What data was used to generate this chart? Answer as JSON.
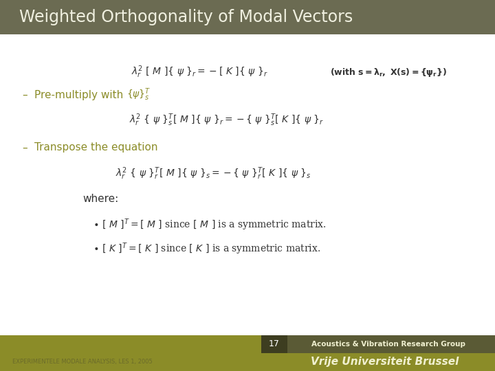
{
  "title": "Weighted Orthogonality of Modal Vectors",
  "title_bg_color": "#6b6b52",
  "title_text_color": "#f0f0e0",
  "body_bg_color": "#ffffff",
  "footer_bg_color": "#8b8c28",
  "footer_dark_color": "#5a5a35",
  "slide_number": "17",
  "footer_left": "EXPERIMENTELE MODALE ANALYSIS, LES 1, 2005",
  "footer_right": "Vrije Universiteit Brussel",
  "footer_center": "Acoustics & Vibration Research Group",
  "footer_left_color": "#6b6b2a",
  "bullet_color": "#8b8c28",
  "text_color": "#333333"
}
